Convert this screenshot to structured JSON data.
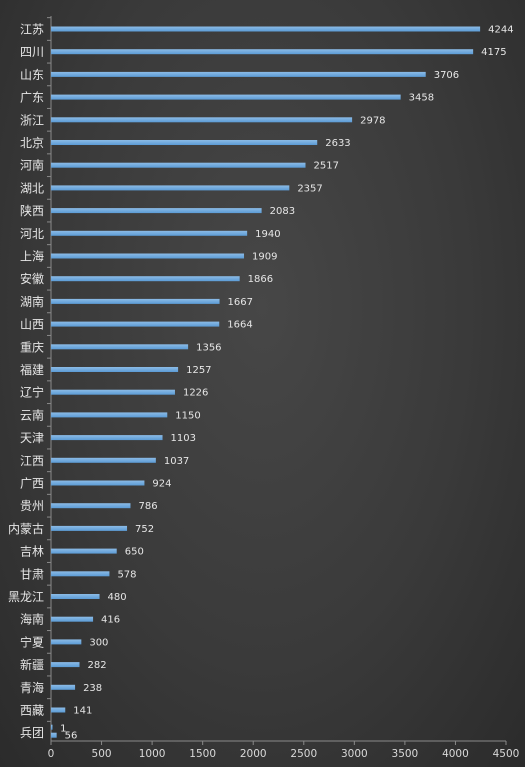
{
  "chart_data": {
    "type": "bar",
    "orientation": "horizontal",
    "categories": [
      "江苏",
      "四川",
      "山东",
      "广东",
      "浙江",
      "北京",
      "河南",
      "湖北",
      "陕西",
      "河北",
      "上海",
      "安徽",
      "湖南",
      "山西",
      "重庆",
      "福建",
      "辽宁",
      "云南",
      "天津",
      "江西",
      "广西",
      "贵州",
      "内蒙古",
      "吉林",
      "甘肃",
      "黑龙江",
      "海南",
      "宁夏",
      "新疆",
      "青海",
      "西藏",
      "兵团"
    ],
    "series": [
      {
        "values": [
          4244,
          4175,
          3706,
          3458,
          2978,
          2633,
          2517,
          2357,
          2083,
          1940,
          1909,
          1866,
          1667,
          1664,
          1356,
          1257,
          1226,
          1150,
          1103,
          1037,
          924,
          786,
          752,
          650,
          578,
          480,
          416,
          300,
          282,
          238,
          141,
          56
        ]
      },
      {
        "values": [
          null,
          null,
          null,
          null,
          null,
          null,
          null,
          null,
          null,
          null,
          null,
          null,
          null,
          null,
          null,
          null,
          null,
          null,
          null,
          null,
          null,
          null,
          null,
          null,
          null,
          null,
          null,
          null,
          null,
          null,
          null,
          1
        ]
      }
    ],
    "xticks": [
      "0",
      "500",
      "1000",
      "1500",
      "2000",
      "2500",
      "3000",
      "3500",
      "4000",
      "4500"
    ],
    "xlim": [
      0,
      4500
    ],
    "grid": false,
    "legend": "none",
    "title": "",
    "xlabel": "",
    "ylabel": ""
  },
  "colors": {
    "bar": "#5b9bd5",
    "bar_light": "#8cbbe6",
    "text": "#e6e6e6",
    "axis": "#8a8a8a"
  }
}
